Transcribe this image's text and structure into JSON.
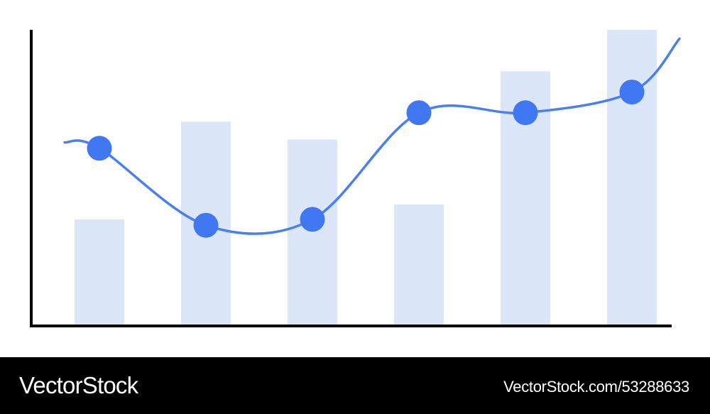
{
  "chart_data": {
    "type": "bar",
    "categories": [
      "",
      "",
      "",
      "",
      "",
      ""
    ],
    "title": "",
    "xlabel": "",
    "ylabel": "",
    "ylim": [
      0,
      10
    ],
    "grid": false,
    "legend": "none",
    "series": [
      {
        "type": "bar",
        "values": [
          3.6,
          6.9,
          6.3,
          4.1,
          8.6,
          10.0
        ],
        "color": "#dce6f9"
      },
      {
        "type": "line",
        "smooth": true,
        "start_value": 6.2,
        "end_value": 9.7,
        "values": [
          6.0,
          3.4,
          3.6,
          7.2,
          7.2,
          7.9
        ],
        "color": "#4a7ff0",
        "marker_color": "#3f78f2"
      }
    ],
    "axis_color": "#000000"
  },
  "watermark": {
    "brand": "VectorStock",
    "credit": "VectorStock.com/53288633"
  }
}
